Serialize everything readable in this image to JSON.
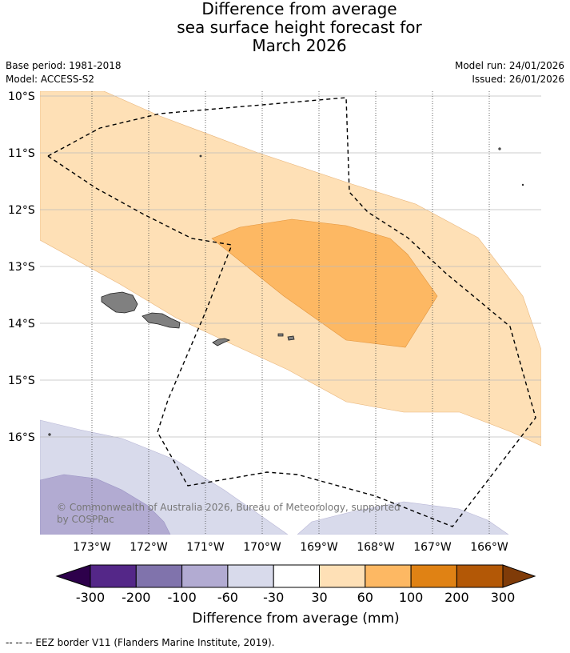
{
  "title": {
    "line1": "Difference from average",
    "line2": "sea surface height forecast for",
    "line3": "March 2026"
  },
  "meta": {
    "base_period": "Base period: 1981-2018",
    "model": "Model: ACCESS-S2",
    "model_run": "Model run: 24/01/2026",
    "issued": "Issued: 26/01/2026"
  },
  "map": {
    "lat_labels": [
      "10°S",
      "11°S",
      "12°S",
      "13°S",
      "14°S",
      "15°S",
      "16°S"
    ],
    "lon_labels": [
      "173°W",
      "172°W",
      "171°W",
      "170°W",
      "169°W",
      "168°W",
      "167°W",
      "166°W"
    ],
    "copyright_line1": "© Commonwealth of Australia 2026, Bureau of Meteorology, supported",
    "copyright_line2": "by COSPPac"
  },
  "colorbar": {
    "ticks": [
      "-300",
      "-200",
      "-100",
      "-60",
      "-30",
      "30",
      "60",
      "100",
      "200",
      "300"
    ],
    "colors": [
      "#2d004b",
      "#542788",
      "#8073ac",
      "#b2abd2",
      "#d8daeb",
      "#ffffff",
      "#fee0b6",
      "#fdb863",
      "#e08214",
      "#b35806",
      "#7f3b08"
    ],
    "title": "Difference from average (mm)"
  },
  "footer": "-- -- -- EEZ border V11 (Flanders Marine Institute, 2019)."
}
